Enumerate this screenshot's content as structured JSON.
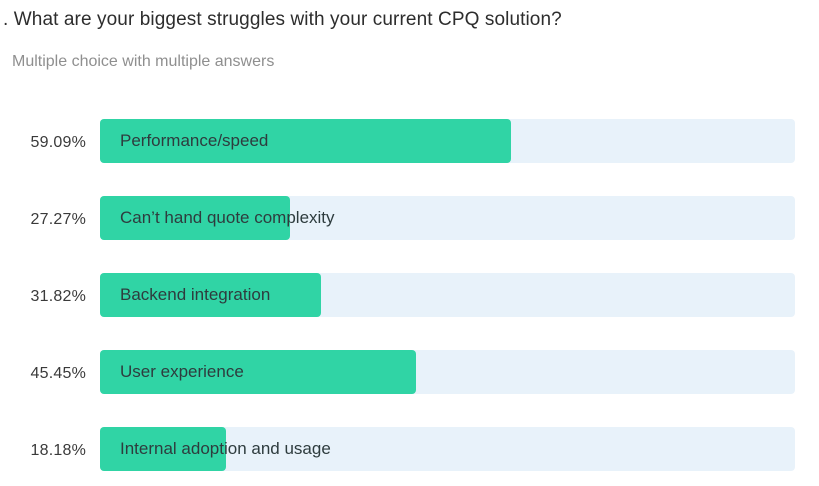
{
  "header": {
    "title": ". What are your biggest struggles with your current CPQ solution?",
    "subtitle": "Multiple choice with multiple answers"
  },
  "colors": {
    "bar_fill": "#30d4a5",
    "bar_track": "#e8f2fa",
    "title_text": "#2d2d2d",
    "subtitle_text": "#8f8f8f",
    "percent_text": "#3a3a3a",
    "bar_label_text": "#2e3c3e"
  },
  "chart_data": {
    "type": "bar",
    "orientation": "horizontal",
    "title": "What are your biggest struggles with your current CPQ solution?",
    "subtitle": "Multiple choice with multiple answers",
    "categories": [
      "Performance/speed",
      "Can’t hand quote complexity",
      "Backend integration",
      "User experience",
      "Internal adoption and usage"
    ],
    "values": [
      59.09,
      27.27,
      31.82,
      45.45,
      18.18
    ],
    "value_labels": [
      "59.09%",
      "27.27%",
      "31.82%",
      "45.45%",
      "18.18%"
    ],
    "unit": "%",
    "xlim": [
      0,
      100
    ],
    "grid": false,
    "legend": false,
    "value_label_position": "left-of-bar",
    "category_label_position": "inside-bar-left"
  }
}
